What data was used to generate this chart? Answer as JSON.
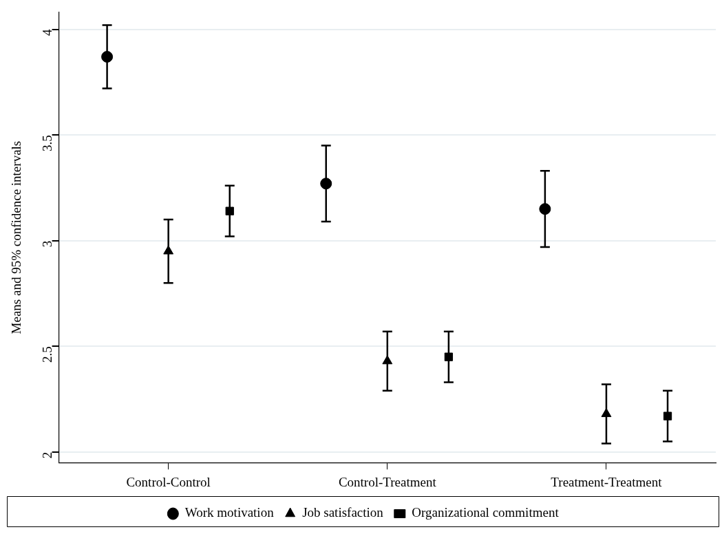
{
  "chart_data": {
    "type": "scatter",
    "ylabel": "Means and 95% confidence intervals",
    "categories": [
      "Control-Control",
      "Control-Treatment",
      "Treatment-Treatment"
    ],
    "series": [
      {
        "name": "Work motivation",
        "color": "#000000",
        "marker": "circle",
        "values": [
          3.87,
          3.27,
          3.15
        ],
        "errors": [
          0.15,
          0.18,
          0.18
        ]
      },
      {
        "name": "Job satisfaction",
        "color": "#000000",
        "marker": "triangle",
        "values": [
          2.95,
          2.43,
          2.18
        ],
        "errors": [
          0.15,
          0.14,
          0.14
        ]
      },
      {
        "name": "Organizational commitment",
        "color": "#000000",
        "marker": "square",
        "values": [
          3.14,
          2.45,
          2.17
        ],
        "errors": [
          0.12,
          0.12,
          0.12
        ]
      }
    ],
    "ylim": [
      1.95,
      4.08
    ],
    "yticks": [
      2,
      2.5,
      3,
      3.5,
      4
    ],
    "grid": "y",
    "legend": "bottom"
  }
}
